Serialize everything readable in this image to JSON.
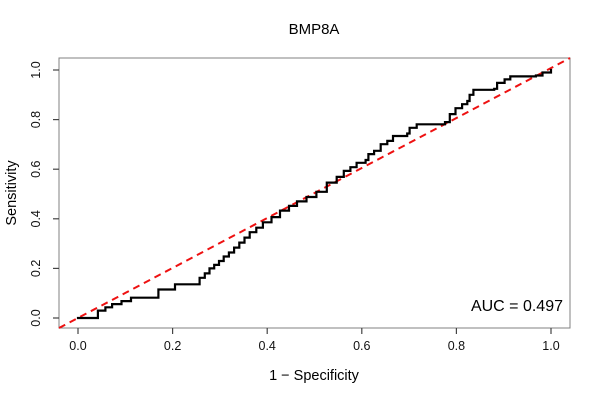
{
  "chart_data": {
    "type": "line",
    "subtype": "roc-step-curve",
    "title": "BMP8A",
    "xlabel": "1 − Specificity",
    "ylabel": "Sensitivity",
    "annotation": "AUC = 0.497",
    "auc_value": 0.497,
    "xlim": [
      0.0,
      1.0
    ],
    "ylim": [
      0.0,
      1.0
    ],
    "x_ticks": [
      0.0,
      0.2,
      0.4,
      0.6,
      0.8,
      1.0
    ],
    "y_ticks": [
      0.0,
      0.2,
      0.4,
      0.6,
      0.8,
      1.0
    ],
    "x_tick_labels": [
      "0.0",
      "0.2",
      "0.4",
      "0.6",
      "0.8",
      "1.0"
    ],
    "y_tick_labels": [
      "0.0",
      "0.2",
      "0.4",
      "0.6",
      "0.8",
      "1.0"
    ],
    "grid": false,
    "legend_position": "none",
    "colors": {
      "roc_curve": "#000000",
      "diagonal": "#ee1111",
      "box_border": "#808080",
      "ticks": "#444444"
    },
    "series": [
      {
        "name": "ROC curve",
        "style": "step-after",
        "color": "#000000",
        "line_width": 2.2,
        "points": [
          [
            0.0,
            0.0
          ],
          [
            0.042,
            0.03
          ],
          [
            0.058,
            0.043
          ],
          [
            0.072,
            0.056
          ],
          [
            0.092,
            0.068
          ],
          [
            0.112,
            0.082
          ],
          [
            0.17,
            0.115
          ],
          [
            0.205,
            0.136
          ],
          [
            0.257,
            0.162
          ],
          [
            0.268,
            0.18
          ],
          [
            0.278,
            0.2
          ],
          [
            0.288,
            0.214
          ],
          [
            0.298,
            0.23
          ],
          [
            0.308,
            0.248
          ],
          [
            0.319,
            0.264
          ],
          [
            0.33,
            0.284
          ],
          [
            0.341,
            0.304
          ],
          [
            0.352,
            0.324
          ],
          [
            0.363,
            0.346
          ],
          [
            0.377,
            0.364
          ],
          [
            0.391,
            0.386
          ],
          [
            0.409,
            0.407
          ],
          [
            0.427,
            0.433
          ],
          [
            0.446,
            0.452
          ],
          [
            0.463,
            0.47
          ],
          [
            0.483,
            0.488
          ],
          [
            0.504,
            0.509
          ],
          [
            0.526,
            0.546
          ],
          [
            0.547,
            0.569
          ],
          [
            0.562,
            0.593
          ],
          [
            0.576,
            0.608
          ],
          [
            0.589,
            0.626
          ],
          [
            0.608,
            0.637
          ],
          [
            0.614,
            0.661
          ],
          [
            0.626,
            0.674
          ],
          [
            0.64,
            0.701
          ],
          [
            0.654,
            0.714
          ],
          [
            0.666,
            0.734
          ],
          [
            0.696,
            0.744
          ],
          [
            0.701,
            0.767
          ],
          [
            0.716,
            0.781
          ],
          [
            0.776,
            0.79
          ],
          [
            0.786,
            0.822
          ],
          [
            0.798,
            0.846
          ],
          [
            0.812,
            0.862
          ],
          [
            0.823,
            0.875
          ],
          [
            0.828,
            0.9
          ],
          [
            0.836,
            0.92
          ],
          [
            0.88,
            0.924
          ],
          [
            0.886,
            0.948
          ],
          [
            0.902,
            0.962
          ],
          [
            0.914,
            0.974
          ],
          [
            0.968,
            0.978
          ],
          [
            0.982,
            0.99
          ],
          [
            1.0,
            1.0
          ]
        ]
      },
      {
        "name": "Chance diagonal",
        "style": "dashed-line",
        "color": "#ee1111",
        "line_width": 2,
        "dash": [
          7,
          5
        ],
        "full_extent": true,
        "points": [
          [
            0.0,
            0.0
          ],
          [
            1.0,
            1.0
          ]
        ]
      }
    ]
  }
}
